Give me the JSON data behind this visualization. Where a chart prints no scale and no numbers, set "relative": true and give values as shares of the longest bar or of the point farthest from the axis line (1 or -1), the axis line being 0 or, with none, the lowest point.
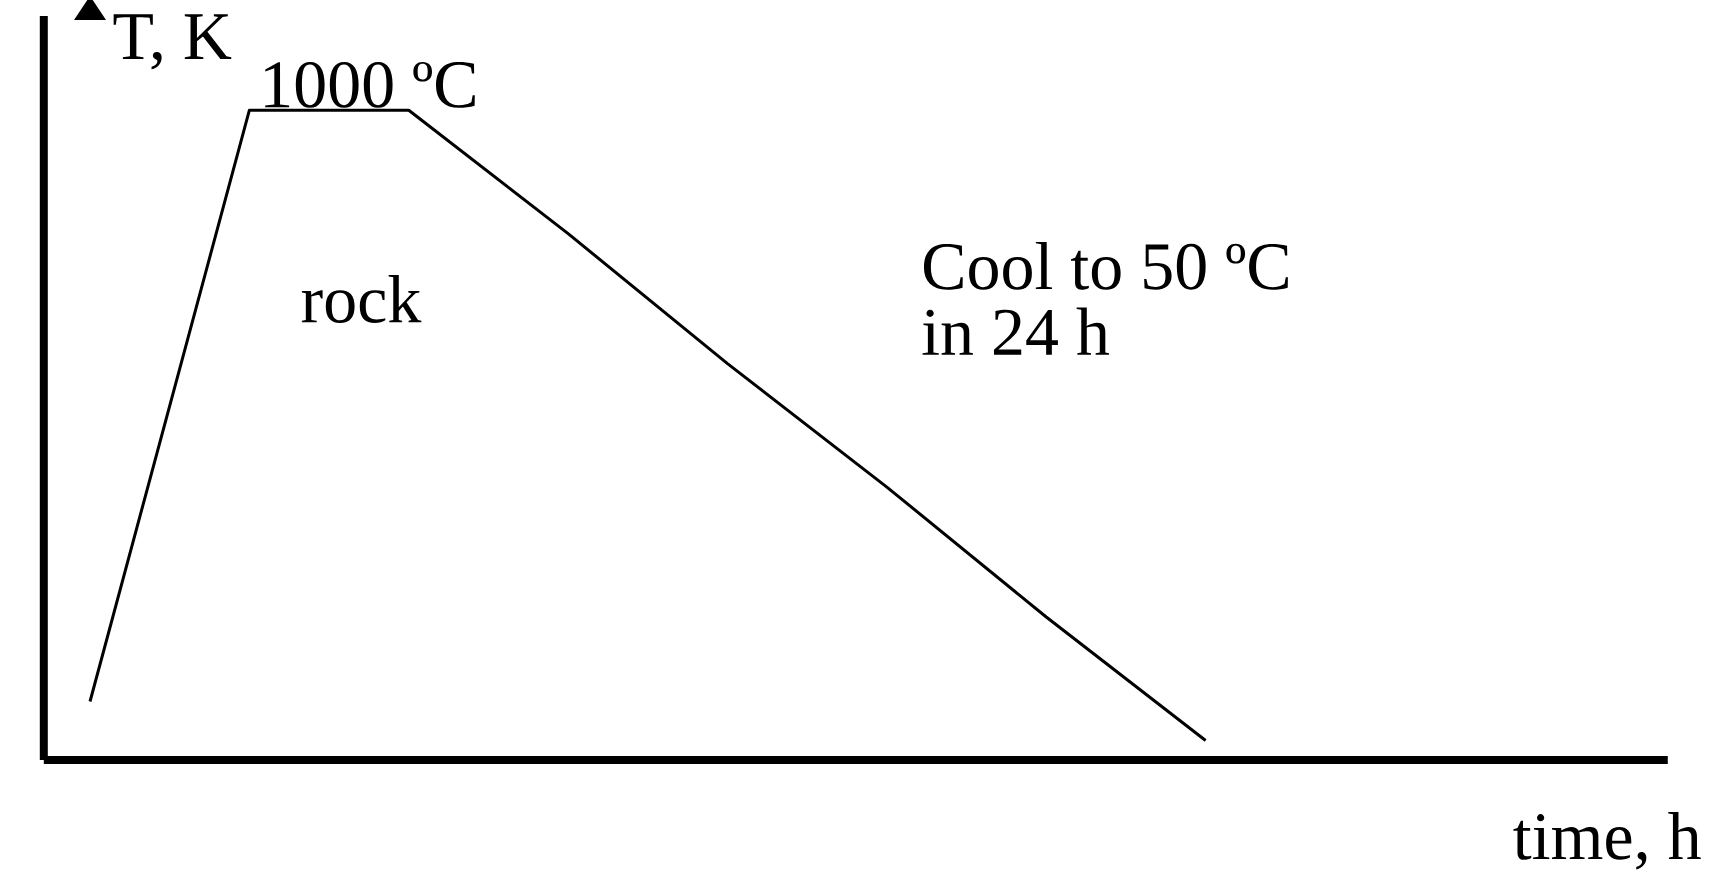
{
  "chart_data": {
    "type": "line",
    "relative": true,
    "xlabel": "time, h",
    "ylabel": "T, K",
    "categories": [
      null,
      null,
      null,
      null,
      null,
      null,
      null,
      null
    ],
    "series": [
      {
        "color": "#000000",
        "values": [
          0.09,
          1,
          1,
          0.81,
          0.61,
          0.42,
          0.22,
          0.03
        ]
      }
    ],
    "marker": "none",
    "line_style": "solid",
    "annotations": [
      "1000 ºC",
      "rock",
      "Cool to 50 ºC",
      "in 24 h"
    ]
  }
}
